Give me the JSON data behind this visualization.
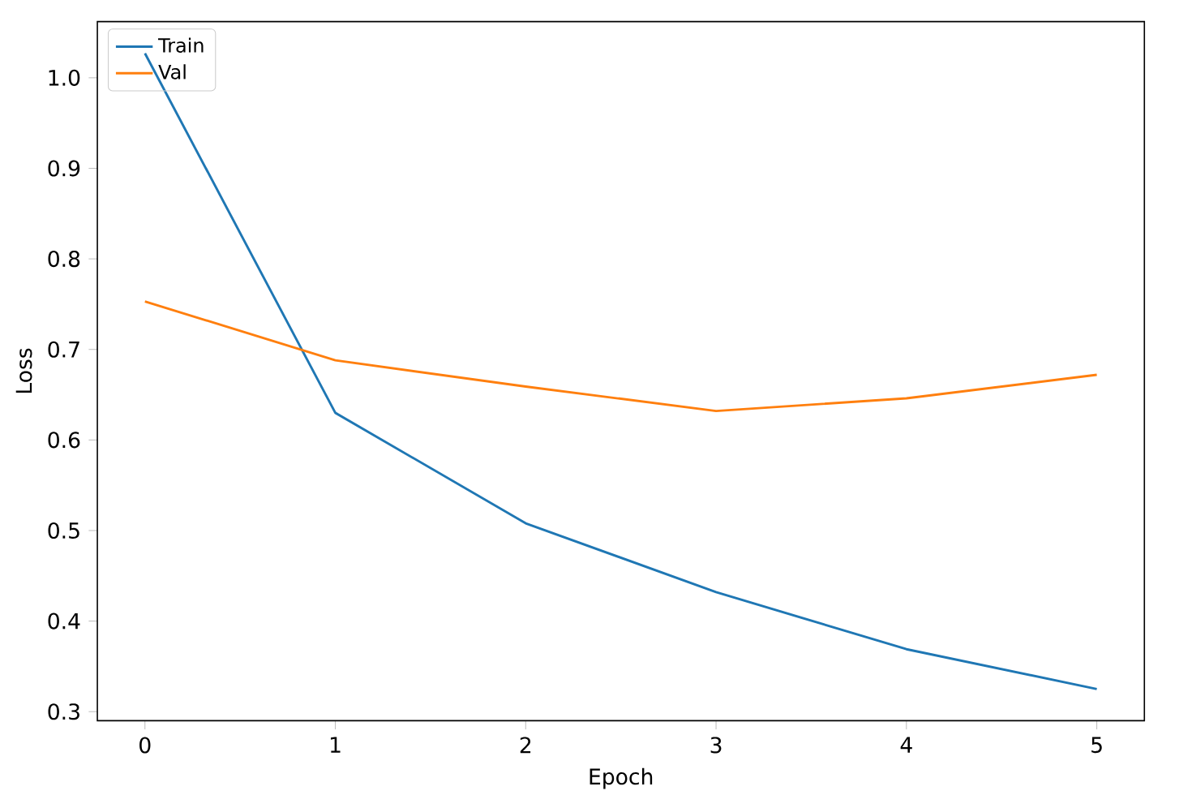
{
  "chart_data": {
    "type": "line",
    "xlabel": "Epoch",
    "ylabel": "Loss",
    "x": [
      0,
      1,
      2,
      3,
      4,
      5
    ],
    "series": [
      {
        "name": "Train",
        "color": "#1f77b4",
        "values": [
          1.027,
          0.63,
          0.508,
          0.432,
          0.369,
          0.325
        ]
      },
      {
        "name": "Val",
        "color": "#ff7f0e",
        "values": [
          0.753,
          0.688,
          0.659,
          0.632,
          0.646,
          0.672
        ]
      }
    ],
    "xlim": [
      -0.25,
      5.25
    ],
    "ylim": [
      0.29,
      1.062
    ],
    "xticks": [
      0,
      1,
      2,
      3,
      4,
      5
    ],
    "yticks": [
      {
        "value": 0.3,
        "label": "0.3"
      },
      {
        "value": 0.4,
        "label": "0.4"
      },
      {
        "value": 0.5,
        "label": "0.5"
      },
      {
        "value": 0.6,
        "label": "0.6"
      },
      {
        "value": 0.7,
        "label": "0.7"
      },
      {
        "value": 0.8,
        "label": "0.8"
      },
      {
        "value": 0.9,
        "label": "0.9"
      },
      {
        "value": 1.0,
        "label": "1.0"
      }
    ],
    "legend": "top left",
    "grid": false,
    "marker": "none",
    "line_style": "solid"
  }
}
